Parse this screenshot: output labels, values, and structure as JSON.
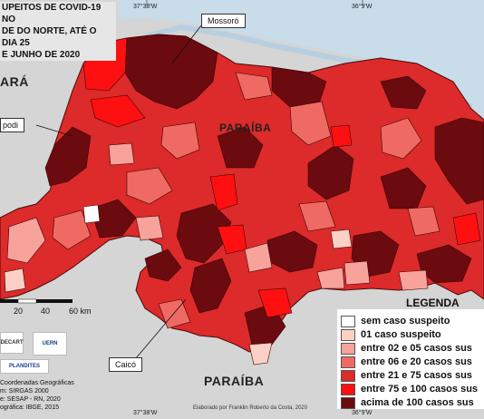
{
  "title": "UPEITOS DE COVID-19 NO\nDE DO NORTE, ATÉ O DIA 25\nE JUNHO DE 2020",
  "coordinates": {
    "top_left": "37°38'W",
    "top_right": "36°9'W",
    "bottom_left": "37°38'W",
    "bottom_right": "36°9'W"
  },
  "neighbor_states": {
    "west": "ARÁ",
    "south": "PARAÍBA",
    "southwest": "PARAÍBA"
  },
  "cities": {
    "mossoro": "Mossoró",
    "apodi": "podi",
    "caico": "Caicó"
  },
  "scale": {
    "ticks": [
      "20",
      "40",
      "60 km"
    ]
  },
  "legend": {
    "title": "LEGENDA",
    "items": [
      {
        "label": "sem caso suspeito",
        "color": "#ffffff"
      },
      {
        "label": "01 caso suspeito",
        "color": "#fcd0c4"
      },
      {
        "label": "entre 02 e 05 casos sus",
        "color": "#f7a29a"
      },
      {
        "label": "entre 06 e 20 casos sus",
        "color": "#ef6a63"
      },
      {
        "label": "entre 21 e 75 casos sus",
        "color": "#dd2a2a"
      },
      {
        "label": "entre 75 e 100 casos sus",
        "color": "#ff1010"
      },
      {
        "label": "acima de 100 casos sus",
        "color": "#6b0a0f"
      }
    ]
  },
  "credits": {
    "line1": "Coordenadas Geográficas",
    "line2": "m: SIRGAS 2000",
    "line3": "e: SESAP - RN, 2020",
    "line4": "ográfica: IBGE, 2015"
  },
  "author": "Elaborado por Franklin Roberto da Costa, 2020",
  "logos": {
    "uern": "UERN",
    "plandites": "PLANDITES",
    "decart": "DECART"
  }
}
